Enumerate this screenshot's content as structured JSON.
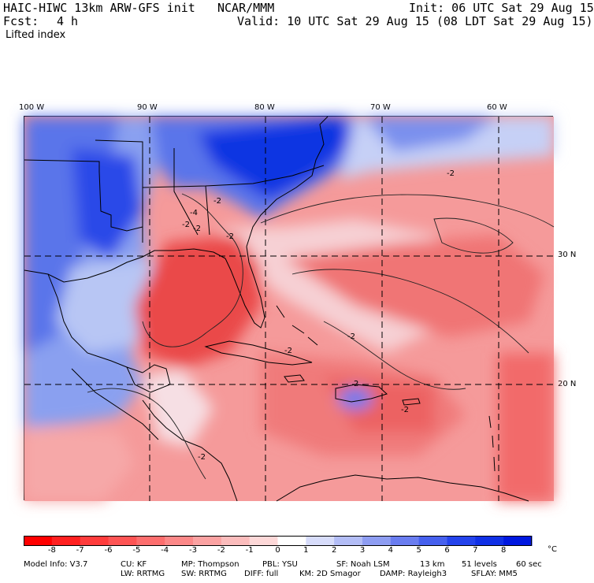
{
  "header": {
    "model": "HAIC-HIWC 13km ARW-GFS init",
    "org": "NCAR/MMM",
    "init": "Init: 06 UTC Sat 29 Aug 15",
    "fcst_label": "Fcst:",
    "fcst_value": "4 h",
    "valid": "Valid: 10 UTC Sat 29 Aug 15 (08 LDT Sat 29 Aug 15)",
    "field": "Lifted index"
  },
  "map": {
    "longitude_labels": [
      "100 W",
      "90 W",
      "80 W",
      "70 W",
      "60 W"
    ],
    "latitude_labels": [
      "30 N",
      "20 N"
    ],
    "contour_labels": [
      "-2",
      "-2",
      "-2",
      "-2",
      "-2",
      "-4",
      "-2",
      "-2",
      "-2",
      "-2",
      "2"
    ],
    "colors": {
      "strong_positive": "#0a2ae0",
      "positive": "#6a84ee",
      "weak_positive": "#c8d2f6",
      "neutral": "#f6e6ea",
      "weak_negative": "#f7b8b8",
      "negative": "#f38a8a",
      "strong_negative": "#e83c3c"
    }
  },
  "colorbar": {
    "unit": "°C",
    "labels": [
      "-8",
      "-7",
      "-6",
      "-5",
      "-4",
      "-3",
      "-2",
      "-1",
      "0",
      "1",
      "2",
      "3",
      "4",
      "5",
      "6",
      "7",
      "8"
    ],
    "colors": [
      "#ff0000",
      "#ff2020",
      "#ff3c3c",
      "#fe5454",
      "#fd6e6e",
      "#fc8888",
      "#fba2a2",
      "#fbbcbc",
      "#fdd8d8",
      "#ffffff",
      "#d7dcfa",
      "#b3bdf6",
      "#8e9df2",
      "#6a7df0",
      "#4660ee",
      "#2443ec",
      "#1030e6",
      "#0018e0"
    ]
  },
  "footer": {
    "line1": [
      "Model Info: V3.7",
      "CU: KF",
      "MP: Thompson",
      "PBL: YSU",
      "SF: Noah LSM",
      "13 km",
      "51 levels",
      "60 sec"
    ],
    "line2": [
      "LW: RRTMG",
      "SW: RRTMG",
      "DIFF: full",
      "KM: 2D Smagor",
      "DAMP: Rayleigh3",
      "SFLAY: MM5"
    ]
  }
}
